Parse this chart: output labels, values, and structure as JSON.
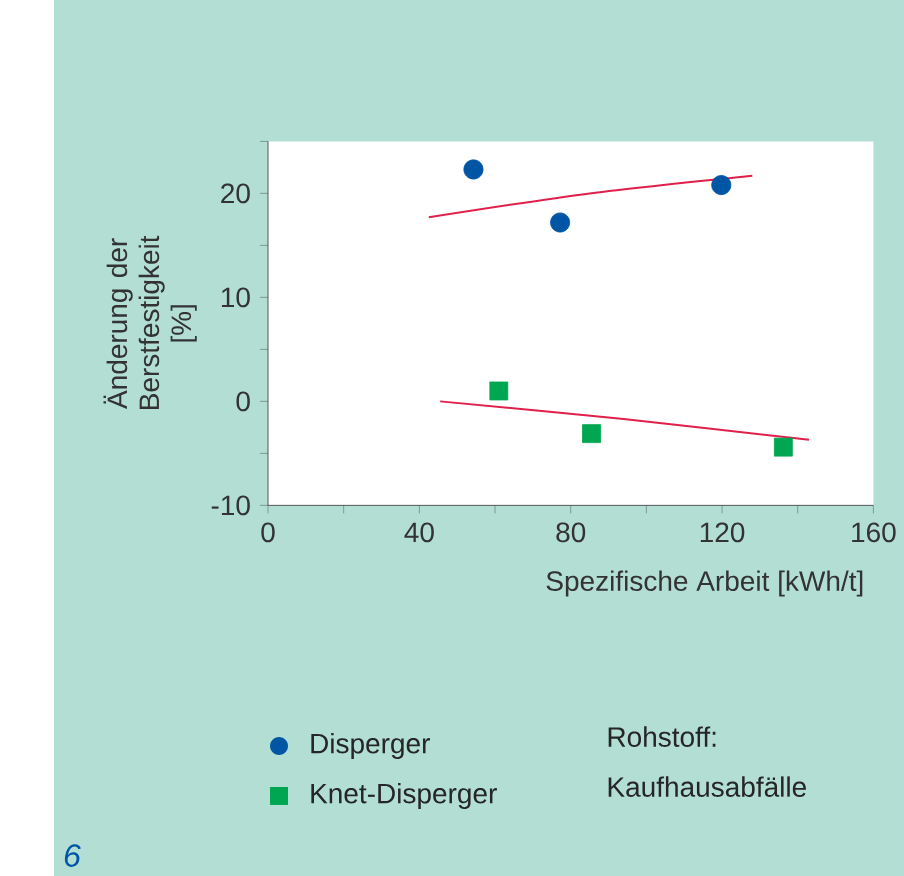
{
  "chart_data": {
    "type": "scatter",
    "xlabel": "Spezifische Arbeit [kWh/t]",
    "ylabel": "Änderung der Berstfestigkeit [%]",
    "xlim": [
      0,
      160
    ],
    "ylim": [
      -10,
      25
    ],
    "xticks": [
      0,
      {
        "value": 20,
        "label": null
      },
      40,
      {
        "value": 60,
        "label": null
      },
      80,
      {
        "value": 100,
        "label": null
      },
      120,
      {
        "value": 140,
        "label": null
      },
      160
    ],
    "yticks": [
      -10,
      {
        "value": -5,
        "label": null
      },
      0,
      {
        "value": 5,
        "label": null
      },
      10,
      {
        "value": 15,
        "label": null
      },
      20,
      {
        "value": 25,
        "label": null
      }
    ],
    "grid": false,
    "legend": "bottom",
    "series": [
      {
        "name": "Disperger",
        "color": "#0055a5",
        "marker": "circle",
        "x": [
          54.3,
          77.2,
          119.8
        ],
        "values": [
          22.3,
          17.2,
          20.8
        ]
      },
      {
        "name": "Knet-Disperger",
        "color": "#00a651",
        "marker": "square",
        "x": [
          61,
          85.5,
          136.2
        ],
        "values": [
          1.0,
          -3.1,
          -4.4
        ]
      },
      {
        "type": "line",
        "color": "#e0204a",
        "marker": "none",
        "x": [
          42.5,
          85,
          128
        ],
        "values": [
          17.7,
          20.0,
          21.7
        ]
      },
      {
        "type": "line",
        "color": "#e0204a",
        "marker": "none",
        "x": [
          45.5,
          94,
          143
        ],
        "values": [
          0,
          -1.7,
          -3.7
        ]
      }
    ],
    "annotations": [
      "6",
      "Rohstoff: Kaufhausabfälle"
    ]
  }
}
